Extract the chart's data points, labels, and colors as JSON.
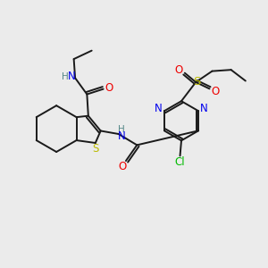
{
  "background_color": "#ebebeb",
  "bond_color": "#1a1a1a",
  "atom_colors": {
    "N": "#0000ee",
    "O": "#ee0000",
    "S": "#bbbb00",
    "Cl": "#00bb00",
    "H": "#558888",
    "C": "#1a1a1a"
  },
  "font_size": 7.5,
  "fig_size": [
    3.0,
    3.0
  ],
  "dpi": 100
}
